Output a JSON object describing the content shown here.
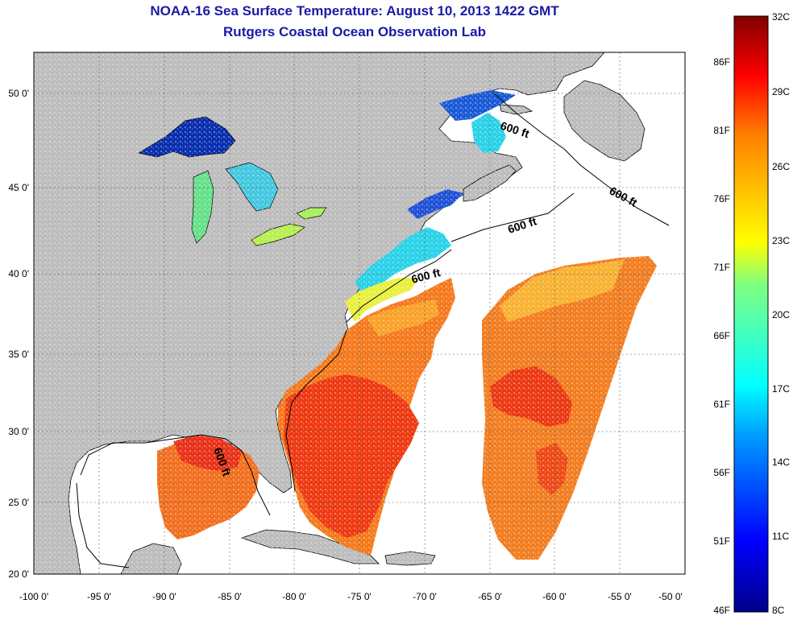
{
  "title_line1": "NOAA-16 Sea Surface Temperature:  August 10, 2013 1422 GMT",
  "title_line2": "Rutgers Coastal Ocean Observation Lab",
  "map": {
    "lon_ticks": [
      "-100 0'",
      "-95 0'",
      "-90 0'",
      "-85 0'",
      "-80 0'",
      "-75 0'",
      "-70 0'",
      "-65 0'",
      "-60 0'",
      "-55 0'",
      "-50 0'"
    ],
    "lat_ticks": [
      "20 0'",
      "25 0'",
      "30 0'",
      "35 0'",
      "40 0'",
      "45 0'",
      "50 0'"
    ],
    "contour_label": "600 ft",
    "land_color": "#bdbdbd",
    "no_data_color": "#ffffff"
  },
  "colorbar": {
    "celsius": [
      "32C",
      "29C",
      "26C",
      "23C",
      "20C",
      "17C",
      "14C",
      "11C",
      "8C"
    ],
    "fahrenheit": [
      "86F",
      "81F",
      "76F",
      "71F",
      "66F",
      "61F",
      "56F",
      "51F",
      "46F"
    ],
    "min_c": 8,
    "max_c": 32
  }
}
